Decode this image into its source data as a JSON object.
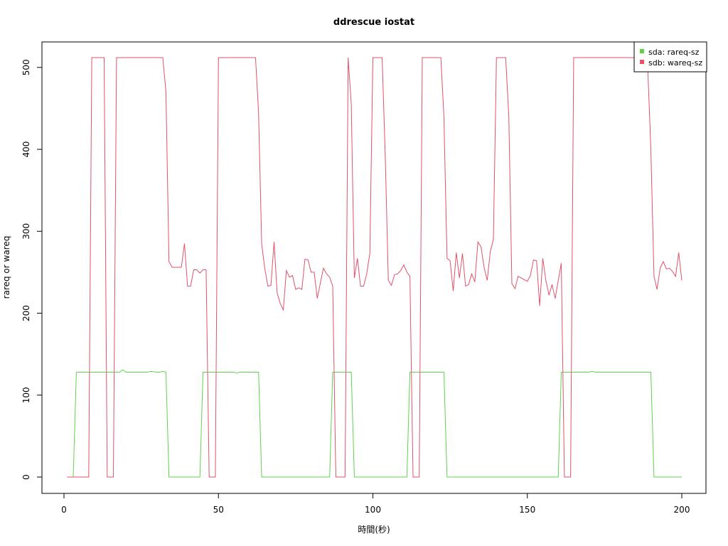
{
  "chart_data": {
    "type": "line",
    "title": "ddrescue iostat",
    "xlabel": "時間(秒)",
    "ylabel": "rareq or wareq",
    "xlim": [
      0,
      200
    ],
    "ylim": [
      0,
      512
    ],
    "xticks": [
      0,
      50,
      100,
      150,
      200
    ],
    "yticks": [
      0,
      100,
      200,
      300,
      400,
      500
    ],
    "legend": {
      "position": "top-right"
    },
    "grid": false,
    "series": [
      {
        "name": "sda: rareq-sz",
        "color": "#61D04F",
        "points": [
          [
            1,
            0
          ],
          [
            3,
            0
          ],
          [
            4,
            128
          ],
          [
            10,
            128
          ],
          [
            16,
            128
          ],
          [
            18,
            128
          ],
          [
            19,
            131
          ],
          [
            20,
            128
          ],
          [
            27,
            128
          ],
          [
            28,
            129
          ],
          [
            30,
            128
          ],
          [
            31,
            128
          ],
          [
            32,
            129
          ],
          [
            33,
            128
          ],
          [
            34,
            0
          ],
          [
            39,
            0
          ],
          [
            44,
            0
          ],
          [
            45,
            128
          ],
          [
            55,
            128
          ],
          [
            56,
            127
          ],
          [
            57,
            128
          ],
          [
            62,
            128
          ],
          [
            63,
            128
          ],
          [
            64,
            0
          ],
          [
            75,
            0
          ],
          [
            86,
            0
          ],
          [
            87,
            128
          ],
          [
            93,
            128
          ],
          [
            94,
            0
          ],
          [
            111,
            0
          ],
          [
            112,
            128
          ],
          [
            120,
            128
          ],
          [
            123,
            128
          ],
          [
            124,
            0
          ],
          [
            140,
            0
          ],
          [
            160,
            0
          ],
          [
            161,
            128
          ],
          [
            170,
            128
          ],
          [
            171,
            129
          ],
          [
            172,
            128
          ],
          [
            180,
            128
          ],
          [
            190,
            128
          ],
          [
            191,
            0
          ],
          [
            200,
            0
          ]
        ]
      },
      {
        "name": "sdb: wareq-sz",
        "color": "#DF536B",
        "points": [
          [
            1,
            0
          ],
          [
            4,
            0
          ],
          [
            8,
            0
          ],
          [
            9,
            512
          ],
          [
            10,
            512
          ],
          [
            13,
            512
          ],
          [
            14,
            0
          ],
          [
            16,
            0
          ],
          [
            17,
            512
          ],
          [
            20,
            512
          ],
          [
            30,
            512
          ],
          [
            32,
            512
          ],
          [
            33,
            470
          ],
          [
            34,
            263
          ],
          [
            35,
            256
          ],
          [
            38,
            256
          ],
          [
            39,
            285
          ],
          [
            40,
            233
          ],
          [
            41,
            233
          ],
          [
            42,
            253
          ],
          [
            43,
            253
          ],
          [
            44,
            249
          ],
          [
            45,
            253
          ],
          [
            46,
            253
          ],
          [
            47,
            0
          ],
          [
            49,
            0
          ],
          [
            50,
            512
          ],
          [
            55,
            512
          ],
          [
            62,
            512
          ],
          [
            63,
            445
          ],
          [
            64,
            284
          ],
          [
            65,
            255
          ],
          [
            66,
            233
          ],
          [
            67,
            234
          ],
          [
            68,
            287
          ],
          [
            69,
            225
          ],
          [
            70,
            212
          ],
          [
            71,
            204
          ],
          [
            72,
            252
          ],
          [
            73,
            244
          ],
          [
            74,
            246
          ],
          [
            75,
            229
          ],
          [
            76,
            231
          ],
          [
            77,
            229
          ],
          [
            78,
            266
          ],
          [
            79,
            265
          ],
          [
            80,
            250
          ],
          [
            81,
            250
          ],
          [
            82,
            218
          ],
          [
            83,
            237
          ],
          [
            84,
            255
          ],
          [
            85,
            248
          ],
          [
            86,
            244
          ],
          [
            87,
            233
          ],
          [
            88,
            0
          ],
          [
            91,
            0
          ],
          [
            92,
            512
          ],
          [
            93,
            455
          ],
          [
            94,
            243
          ],
          [
            95,
            267
          ],
          [
            96,
            233
          ],
          [
            97,
            233
          ],
          [
            98,
            248
          ],
          [
            99,
            273
          ],
          [
            100,
            512
          ],
          [
            101,
            512
          ],
          [
            103,
            512
          ],
          [
            104,
            392
          ],
          [
            105,
            240
          ],
          [
            106,
            234
          ],
          [
            107,
            247
          ],
          [
            108,
            248
          ],
          [
            109,
            252
          ],
          [
            110,
            259
          ],
          [
            111,
            250
          ],
          [
            112,
            245
          ],
          [
            113,
            0
          ],
          [
            115,
            0
          ],
          [
            116,
            512
          ],
          [
            120,
            512
          ],
          [
            122,
            512
          ],
          [
            123,
            440
          ],
          [
            124,
            267
          ],
          [
            125,
            264
          ],
          [
            126,
            227
          ],
          [
            127,
            274
          ],
          [
            128,
            243
          ],
          [
            129,
            273
          ],
          [
            130,
            233
          ],
          [
            131,
            235
          ],
          [
            132,
            248
          ],
          [
            133,
            238
          ],
          [
            134,
            287
          ],
          [
            135,
            281
          ],
          [
            136,
            256
          ],
          [
            137,
            240
          ],
          [
            138,
            275
          ],
          [
            139,
            290
          ],
          [
            140,
            512
          ],
          [
            143,
            512
          ],
          [
            144,
            440
          ],
          [
            145,
            236
          ],
          [
            146,
            230
          ],
          [
            147,
            245
          ],
          [
            148,
            243
          ],
          [
            149,
            241
          ],
          [
            150,
            239
          ],
          [
            151,
            246
          ],
          [
            152,
            265
          ],
          [
            153,
            264
          ],
          [
            154,
            209
          ],
          [
            155,
            267
          ],
          [
            156,
            240
          ],
          [
            157,
            222
          ],
          [
            158,
            235
          ],
          [
            159,
            218
          ],
          [
            160,
            240
          ],
          [
            161,
            261
          ],
          [
            162,
            0
          ],
          [
            164,
            0
          ],
          [
            165,
            512
          ],
          [
            170,
            512
          ],
          [
            185,
            512
          ],
          [
            188,
            512
          ],
          [
            189,
            498
          ],
          [
            190,
            400
          ],
          [
            191,
            245
          ],
          [
            192,
            229
          ],
          [
            193,
            255
          ],
          [
            194,
            263
          ],
          [
            195,
            254
          ],
          [
            196,
            255
          ],
          [
            197,
            251
          ],
          [
            198,
            245
          ],
          [
            199,
            274
          ],
          [
            200,
            240
          ]
        ]
      }
    ]
  }
}
